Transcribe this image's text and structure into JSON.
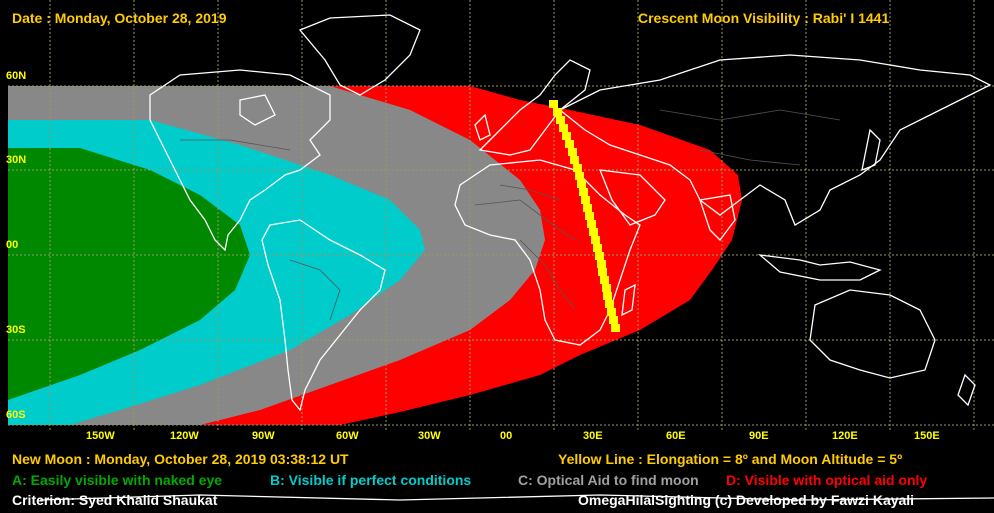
{
  "header": {
    "date": "Date : Monday, October 28, 2019",
    "title": "Crescent Moon Visibility : Rabi' I  1441"
  },
  "map": {
    "lat_labels": [
      "60N",
      "30N",
      "00",
      "30S",
      "60S"
    ],
    "lon_labels": [
      "150W",
      "120W",
      "90W",
      "60W",
      "30W",
      "00",
      "30E",
      "60E",
      "90E",
      "120E",
      "150E"
    ]
  },
  "footer": {
    "new_moon": "New Moon : Monday, October 28, 2019  03:38:12  UT",
    "yellow_line": "Yellow Line : Elongation = 8º  and Moon Altitude = 5º",
    "legend": [
      {
        "text": "A: Easily visible with naked eye",
        "color": "#00aa00"
      },
      {
        "text": "B: Visible if perfect conditions",
        "color": "#00cccc"
      },
      {
        "text": "C: Optical Aid to find moon",
        "color": "#a0a0a0"
      },
      {
        "text": "D: Visible with optical aid only",
        "color": "#ff0000"
      }
    ],
    "criterion": "Criterion: Syed Khalid Shaukat",
    "credit": "OmegaHilalSighting  (c)  Developed by Fawzi Kayali"
  },
  "colors": {
    "zone_a": "#008800",
    "zone_b": "#00cccc",
    "zone_c": "#888888",
    "zone_d": "#ff0000",
    "yellow_line": "#ffff00",
    "coast": "#ffffff",
    "grid": "#999966"
  }
}
